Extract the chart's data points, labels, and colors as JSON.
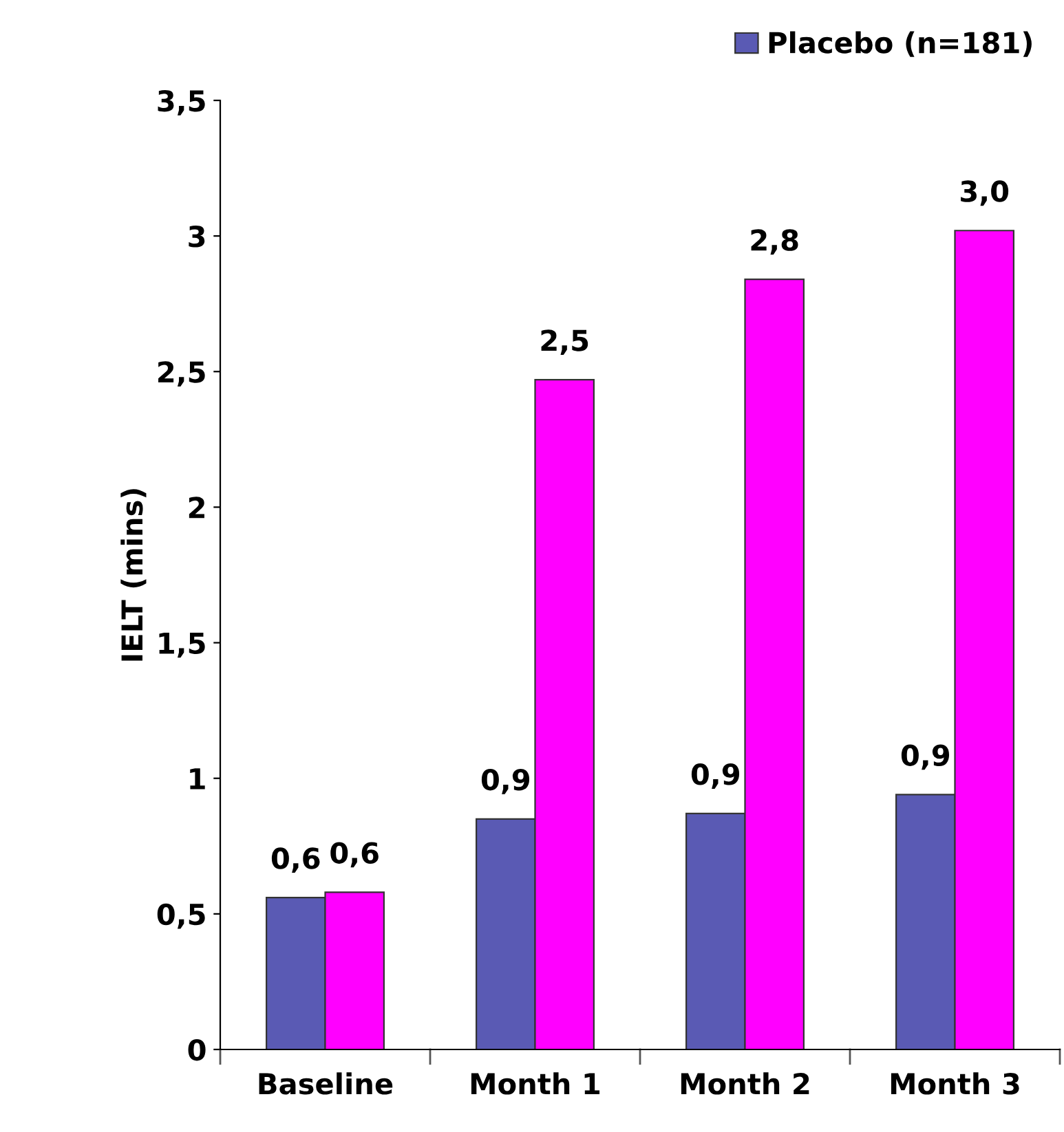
{
  "chart_data": {
    "type": "bar",
    "ylabel": "IELT (mins)",
    "categories": [
      "Baseline",
      "Month 1",
      "Month 2",
      "Month 3"
    ],
    "series": [
      {
        "name": "Placebo (n=181)",
        "color": "#5a5ab4",
        "values": [
          0.56,
          0.85,
          0.87,
          0.94
        ],
        "value_labels": [
          "0,6",
          "0,9",
          "0,9",
          "0,9"
        ]
      },
      {
        "color": "#ff00ff",
        "values": [
          0.58,
          2.47,
          2.84,
          3.02
        ],
        "value_labels": [
          "0,6",
          "2,5",
          "2,8",
          "3,0"
        ]
      }
    ],
    "ylim": [
      0,
      3.5
    ],
    "yticks": [
      0,
      {
        "value": 0.5,
        "label": "0,5"
      },
      1,
      {
        "value": 1.5,
        "label": "1,5"
      },
      2,
      {
        "value": 2.5,
        "label": "2,5"
      },
      3,
      {
        "value": 3.5,
        "label": "3,5"
      }
    ],
    "grid": false,
    "legend": "top right"
  }
}
